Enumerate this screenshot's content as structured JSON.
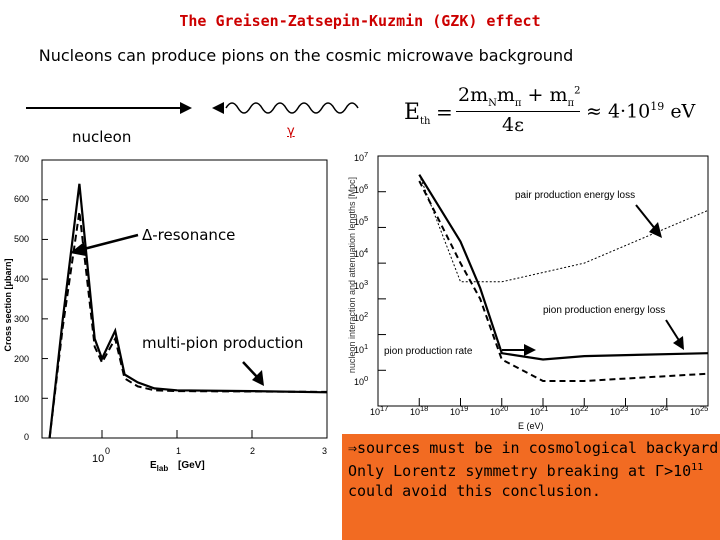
{
  "slide": {
    "title": "The Greisen-Zatsepin-Kuzmin (GZK) effect",
    "subtitle": "Nucleons can produce pions on the cosmic microwave background"
  },
  "process": {
    "nucleon_label": "nucleon",
    "gamma_label": "γ"
  },
  "formula": {
    "lhs": "E",
    "lhs_sub": "th",
    "equals": "=",
    "numerator": "2m",
    "num_sub_N": "N",
    "num_m2": "m",
    "num_sub_pi": "π",
    "num_plus": " + m",
    "num_sub_pi2": "π",
    "num_sup_2": "2",
    "denominator": "4ε",
    "approx": "≈ 4·10",
    "exp": "19",
    "unit": "eV"
  },
  "left_plot": {
    "ylabel": "Cross section [μbarn]",
    "xlabel": "E",
    "xlabel_sub": "lab",
    "xunit": "[GeV]",
    "yticks": [
      "700",
      "600",
      "500",
      "400",
      "300",
      "200",
      "100",
      "0"
    ],
    "xticks": [
      "10",
      "0",
      "1",
      "2",
      "3"
    ],
    "annotations": [
      "Δ-resonance",
      "multi-pion production"
    ]
  },
  "right_plot": {
    "ylabel": "nucleon interaction and attenuation lengths [Mpc]",
    "xlabel": "E (eV)",
    "yticks_base": "10",
    "yticks_exp": [
      "7",
      "6",
      "5",
      "4",
      "3",
      "2",
      "1",
      "0"
    ],
    "xticks_exp": [
      "17",
      "18",
      "19",
      "20",
      "21",
      "22",
      "23",
      "24",
      "25"
    ],
    "annotations": [
      "pair production energy loss",
      "pion production energy loss",
      "pion production rate"
    ]
  },
  "conclusion": {
    "line1_arrow": "⇒",
    "line1": "sources must be in cosmological backyard",
    "line2_prefix": "Only Lorentz symmetry breaking at Γ>10",
    "line2_sup": "11",
    "line3": "could avoid this conclusion."
  },
  "colors": {
    "title": "#cc0000",
    "gamma": "#cc0000",
    "conclusion_bg": "#f26b22"
  },
  "chart_data": [
    {
      "type": "line",
      "xlabel": "E lab [GeV]",
      "ylabel": "Cross section [μbarn]",
      "ylim": [
        0,
        700
      ],
      "series": [
        {
          "x": [
            0.2,
            0.3,
            0.5,
            0.8,
            1.0,
            1.5,
            2,
            3,
            5,
            10,
            100,
            1000
          ],
          "y": [
            0,
            300,
            640,
            250,
            200,
            270,
            160,
            140,
            125,
            120,
            118,
            115
          ]
        },
        {
          "x": [
            0.2,
            0.3,
            0.5,
            0.8,
            1.0,
            1.5,
            2,
            3,
            5,
            10,
            100,
            1000
          ],
          "y": [
            0,
            280,
            570,
            230,
            190,
            250,
            150,
            130,
            120,
            118,
            117,
            116
          ]
        }
      ]
    },
    {
      "type": "line",
      "xlabel": "E (eV)",
      "ylabel": "nucleon interaction and attenuation lengths [Mpc]",
      "x_scale": "log",
      "y_scale": "log",
      "xlim": [
        1e+17,
        1e+25
      ],
      "ylim": [
        1,
        10000000.0
      ],
      "series": [
        {
          "x": [
            1e+18,
            1e+19,
            3e+19,
            1e+20,
            1e+21,
            1e+22,
            1e+25
          ],
          "y": [
            3000000.0,
            40000.0,
            2000.0,
            30,
            20,
            25,
            30
          ]
        },
        {
          "x": [
            1e+18,
            1e+19,
            3e+19,
            1e+20,
            1e+21,
            1e+22,
            1e+25
          ],
          "y": [
            2000000.0,
            10000.0,
            1000.0,
            20,
            5,
            5,
            8
          ]
        },
        {
          "x": [
            1e+18,
            1e+19,
            1e+20,
            1e+22,
            1e+25
          ],
          "y": [
            3000000.0,
            3000.0,
            3000.0,
            10000.0,
            300000.0
          ]
        }
      ]
    }
  ]
}
